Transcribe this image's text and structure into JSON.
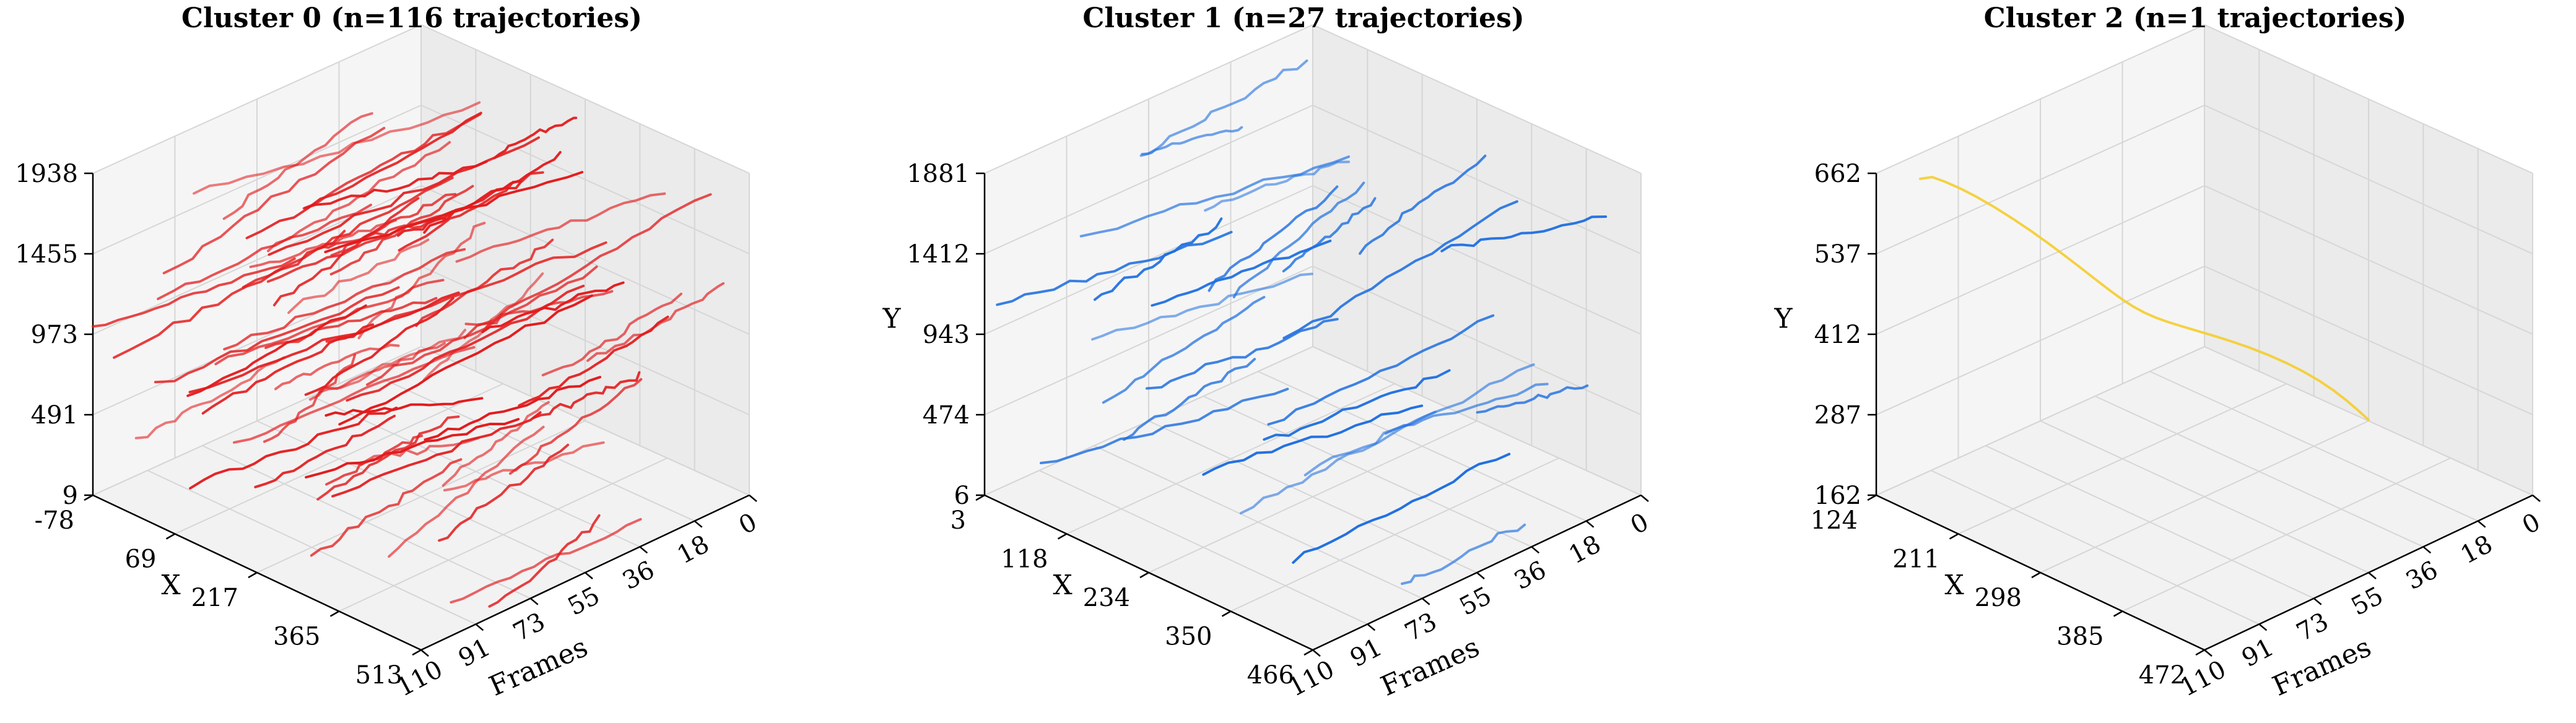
{
  "chart_data": [
    {
      "type": "line3d",
      "title": "Cluster 0 (n=116 trajectories)",
      "xlabel": "X",
      "ylabel": "",
      "zlabel": "Frames",
      "x_ticks": [
        "-78",
        "69",
        "217",
        "365",
        "513"
      ],
      "y_ticks": [
        "9",
        "491",
        "973",
        "1455",
        "1938"
      ],
      "frame_ticks": [
        "0",
        "18",
        "36",
        "55",
        "73",
        "91",
        "110"
      ],
      "xlim": [
        -78,
        513
      ],
      "ylim": [
        9,
        1938
      ],
      "frames_lim": [
        0,
        110
      ],
      "color": "#e31a1c",
      "num_trajectories": 116
    },
    {
      "type": "line3d",
      "title": "Cluster 1 (n=27 trajectories)",
      "xlabel": "X",
      "ylabel": "Y",
      "zlabel": "Frames",
      "x_ticks": [
        "3",
        "118",
        "234",
        "350",
        "466"
      ],
      "y_ticks": [
        "6",
        "474",
        "943",
        "1412",
        "1881"
      ],
      "frame_ticks": [
        "0",
        "18",
        "36",
        "55",
        "73",
        "91",
        "110"
      ],
      "xlim": [
        3,
        466
      ],
      "ylim": [
        6,
        1881
      ],
      "frames_lim": [
        0,
        110
      ],
      "color": "#1f6fe0",
      "num_trajectories": 27
    },
    {
      "type": "line3d",
      "title": "Cluster 2 (n=1 trajectories)",
      "xlabel": "X",
      "ylabel": "Y",
      "zlabel": "Frames",
      "x_ticks": [
        "124",
        "211",
        "298",
        "385",
        "472"
      ],
      "y_ticks": [
        "162",
        "287",
        "412",
        "537",
        "662"
      ],
      "frame_ticks": [
        "0",
        "18",
        "36",
        "55",
        "73",
        "91",
        "110"
      ],
      "xlim": [
        124,
        472
      ],
      "ylim": [
        162,
        662
      ],
      "frames_lim": [
        0,
        110
      ],
      "color": "#f5cd2e",
      "num_trajectories": 1
    }
  ]
}
